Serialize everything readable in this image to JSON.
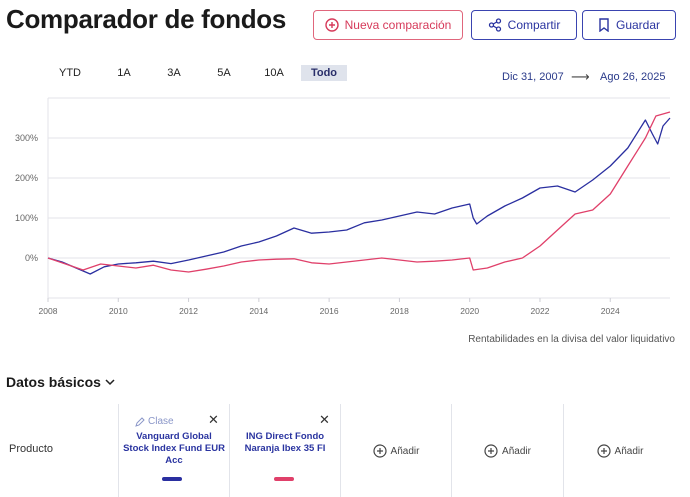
{
  "header": {
    "title": "Comparador de fondos",
    "new_label": "Nueva comparación",
    "share_label": "Compartir",
    "save_label": "Guardar"
  },
  "ranges": [
    "YTD",
    "1A",
    "3A",
    "5A",
    "10A",
    "Todo"
  ],
  "active_range": "Todo",
  "dates": {
    "start": "Dic 31, 2007",
    "end": "Ago 26, 2025",
    "arrow": "⟶"
  },
  "footnote": "Rentabilidades en la divisa del valor liquidativo",
  "section": {
    "title": "Datos básicos"
  },
  "table": {
    "row_label": "Producto",
    "class_label": "Clase",
    "close_glyph": "✕",
    "add_label": "Añadir",
    "funds": [
      {
        "name": "Vanguard Global Stock Index Fund EUR Acc",
        "color": "#2a2fa0"
      },
      {
        "name": "ING Direct Fondo Naranja Ibex 35 FI",
        "color": "#e0406a"
      }
    ]
  },
  "chart_data": {
    "type": "line",
    "x_ticks": [
      "2008",
      "2010",
      "2012",
      "2014",
      "2016",
      "2018",
      "2020",
      "2022",
      "2024"
    ],
    "y_ticks": [
      "0%",
      "100%",
      "200%",
      "300%"
    ],
    "ylim": [
      -100,
      400
    ],
    "xlim": [
      2008,
      2025.7
    ],
    "grid": true,
    "series": [
      {
        "name": "Vanguard Global Stock Index Fund EUR Acc",
        "color": "#2a2fa0",
        "points": [
          [
            2008.0,
            0
          ],
          [
            2008.4,
            -10
          ],
          [
            2008.8,
            -25
          ],
          [
            2009.2,
            -40
          ],
          [
            2009.6,
            -22
          ],
          [
            2010.0,
            -15
          ],
          [
            2010.5,
            -12
          ],
          [
            2011.0,
            -8
          ],
          [
            2011.5,
            -14
          ],
          [
            2012.0,
            -5
          ],
          [
            2012.5,
            5
          ],
          [
            2013.0,
            15
          ],
          [
            2013.5,
            30
          ],
          [
            2014.0,
            40
          ],
          [
            2014.5,
            55
          ],
          [
            2015.0,
            75
          ],
          [
            2015.5,
            62
          ],
          [
            2016.0,
            65
          ],
          [
            2016.5,
            70
          ],
          [
            2017.0,
            88
          ],
          [
            2017.5,
            95
          ],
          [
            2018.0,
            105
          ],
          [
            2018.5,
            115
          ],
          [
            2019.0,
            110
          ],
          [
            2019.5,
            125
          ],
          [
            2020.0,
            135
          ],
          [
            2020.1,
            100
          ],
          [
            2020.2,
            85
          ],
          [
            2020.5,
            105
          ],
          [
            2021.0,
            130
          ],
          [
            2021.5,
            150
          ],
          [
            2022.0,
            175
          ],
          [
            2022.5,
            180
          ],
          [
            2023.0,
            165
          ],
          [
            2023.5,
            195
          ],
          [
            2024.0,
            230
          ],
          [
            2024.5,
            275
          ],
          [
            2025.0,
            345
          ],
          [
            2025.2,
            310
          ],
          [
            2025.35,
            285
          ],
          [
            2025.5,
            330
          ],
          [
            2025.7,
            350
          ]
        ]
      },
      {
        "name": "ING Direct Fondo Naranja Ibex 35 FI",
        "color": "#e0406a",
        "points": [
          [
            2008.0,
            0
          ],
          [
            2008.5,
            -15
          ],
          [
            2009.0,
            -30
          ],
          [
            2009.5,
            -15
          ],
          [
            2010.0,
            -20
          ],
          [
            2010.5,
            -25
          ],
          [
            2011.0,
            -18
          ],
          [
            2011.5,
            -30
          ],
          [
            2012.0,
            -35
          ],
          [
            2012.5,
            -28
          ],
          [
            2013.0,
            -20
          ],
          [
            2013.5,
            -10
          ],
          [
            2014.0,
            -5
          ],
          [
            2014.5,
            -3
          ],
          [
            2015.0,
            -2
          ],
          [
            2015.5,
            -12
          ],
          [
            2016.0,
            -15
          ],
          [
            2016.5,
            -10
          ],
          [
            2017.0,
            -5
          ],
          [
            2017.5,
            0
          ],
          [
            2018.0,
            -5
          ],
          [
            2018.5,
            -10
          ],
          [
            2019.0,
            -8
          ],
          [
            2019.5,
            -5
          ],
          [
            2020.0,
            0
          ],
          [
            2020.1,
            -30
          ],
          [
            2020.5,
            -25
          ],
          [
            2021.0,
            -10
          ],
          [
            2021.5,
            0
          ],
          [
            2022.0,
            30
          ],
          [
            2022.5,
            70
          ],
          [
            2023.0,
            110
          ],
          [
            2023.5,
            120
          ],
          [
            2024.0,
            160
          ],
          [
            2024.5,
            230
          ],
          [
            2025.0,
            300
          ],
          [
            2025.3,
            355
          ],
          [
            2025.7,
            365
          ]
        ]
      }
    ]
  }
}
